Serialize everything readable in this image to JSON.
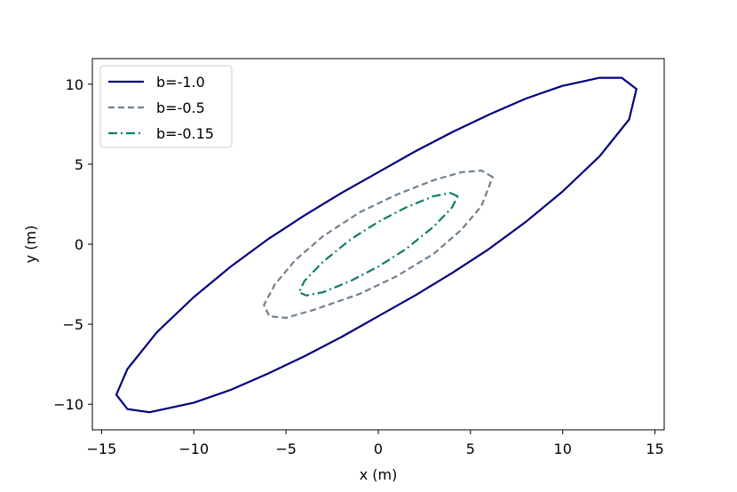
{
  "chart_data": {
    "type": "line",
    "title": "",
    "xlabel": "x (m)",
    "ylabel": "y (m)",
    "xlim": [
      -15.5,
      15.5
    ],
    "ylim": [
      -11.6,
      11.6
    ],
    "xticks": [
      -15,
      -10,
      -5,
      0,
      5,
      10,
      15
    ],
    "yticks": [
      -10,
      -5,
      0,
      5,
      10
    ],
    "xtick_labels": [
      "−15",
      "−10",
      "−5",
      "0",
      "5",
      "10",
      "15"
    ],
    "ytick_labels": [
      "−10",
      "−5",
      "0",
      "5",
      "10"
    ],
    "grid": false,
    "legend_position": "top-left",
    "series": [
      {
        "name": "b=-1.0",
        "color": "#000080",
        "style": "solid",
        "points": [
          [
            14.0,
            9.7
          ],
          [
            13.2,
            10.4
          ],
          [
            12.0,
            10.4
          ],
          [
            10.0,
            9.9
          ],
          [
            8.0,
            9.1
          ],
          [
            6.0,
            8.1
          ],
          [
            4.0,
            7.0
          ],
          [
            2.0,
            5.8
          ],
          [
            0.0,
            4.5
          ],
          [
            -2.0,
            3.2
          ],
          [
            -4.0,
            1.8
          ],
          [
            -6.0,
            0.3
          ],
          [
            -8.0,
            -1.4
          ],
          [
            -10.0,
            -3.3
          ],
          [
            -12.0,
            -5.5
          ],
          [
            -13.6,
            -7.8
          ],
          [
            -14.2,
            -9.4
          ],
          [
            -13.6,
            -10.3
          ],
          [
            -12.4,
            -10.5
          ],
          [
            -10.0,
            -9.9
          ],
          [
            -8.0,
            -9.1
          ],
          [
            -6.0,
            -8.1
          ],
          [
            -4.0,
            -7.0
          ],
          [
            -2.0,
            -5.8
          ],
          [
            0.0,
            -4.5
          ],
          [
            2.0,
            -3.2
          ],
          [
            4.0,
            -1.8
          ],
          [
            6.0,
            -0.3
          ],
          [
            8.0,
            1.4
          ],
          [
            10.0,
            3.3
          ],
          [
            12.0,
            5.5
          ],
          [
            13.6,
            7.8
          ],
          [
            14.0,
            9.7
          ]
        ]
      },
      {
        "name": "b=-0.5",
        "color": "#708090",
        "style": "dashed",
        "points": [
          [
            6.2,
            4.2
          ],
          [
            5.6,
            4.6
          ],
          [
            4.5,
            4.5
          ],
          [
            3.0,
            4.0
          ],
          [
            1.0,
            3.1
          ],
          [
            -1.0,
            2.0
          ],
          [
            -3.0,
            0.5
          ],
          [
            -4.5,
            -1.0
          ],
          [
            -5.6,
            -2.5
          ],
          [
            -6.2,
            -3.8
          ],
          [
            -5.9,
            -4.5
          ],
          [
            -5.0,
            -4.6
          ],
          [
            -3.5,
            -4.1
          ],
          [
            -1.0,
            -3.1
          ],
          [
            1.0,
            -2.0
          ],
          [
            3.0,
            -0.6
          ],
          [
            4.5,
            0.9
          ],
          [
            5.6,
            2.4
          ],
          [
            6.2,
            4.2
          ]
        ]
      },
      {
        "name": "b=-0.15",
        "color": "#0e7c6b",
        "style": "dashdot",
        "points": [
          [
            4.3,
            3.0
          ],
          [
            3.9,
            3.2
          ],
          [
            3.0,
            3.0
          ],
          [
            1.5,
            2.3
          ],
          [
            0.0,
            1.4
          ],
          [
            -1.5,
            0.3
          ],
          [
            -3.0,
            -1.1
          ],
          [
            -4.0,
            -2.3
          ],
          [
            -4.3,
            -3.0
          ],
          [
            -3.9,
            -3.2
          ],
          [
            -3.0,
            -3.0
          ],
          [
            -1.5,
            -2.3
          ],
          [
            0.0,
            -1.4
          ],
          [
            1.5,
            -0.3
          ],
          [
            3.0,
            1.1
          ],
          [
            4.0,
            2.3
          ],
          [
            4.3,
            3.0
          ]
        ]
      }
    ]
  }
}
